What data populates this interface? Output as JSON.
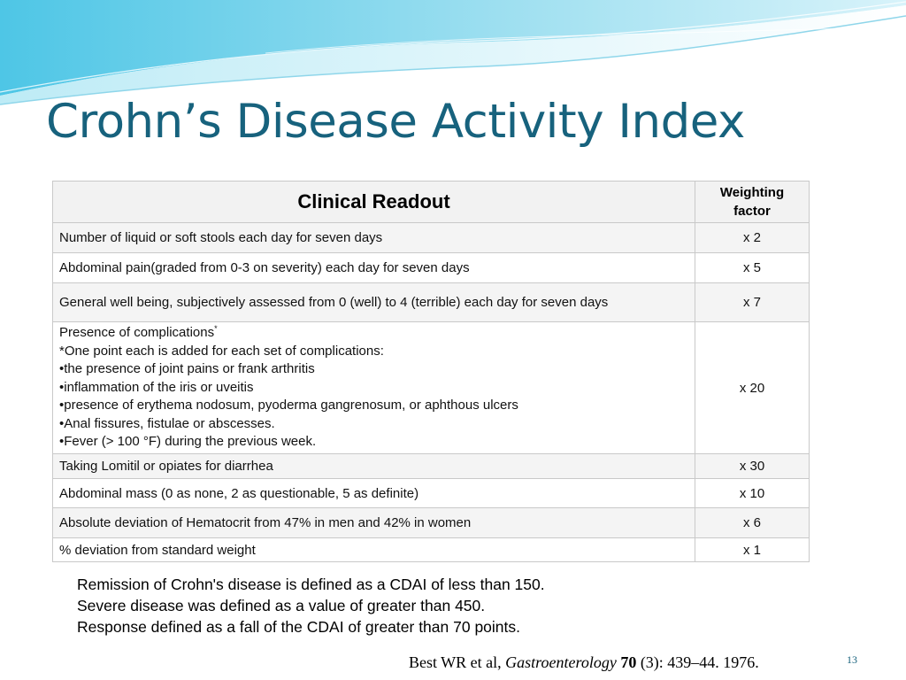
{
  "slide": {
    "title": "Crohn’s Disease Activity Index",
    "page_number": "13",
    "accent_color": "#17627d"
  },
  "table": {
    "headers": {
      "readout": "Clinical Readout",
      "weight_line1": "Weighting",
      "weight_line2": "factor"
    },
    "rows": [
      {
        "readout": "Number of liquid or soft stools each day for seven days",
        "weight": "x 2"
      },
      {
        "readout": "Abdominal pain(graded from 0-3 on severity) each day for seven days",
        "weight": "x 5"
      },
      {
        "readout": "General well being, subjectively assessed from 0 (well) to 4 (terrible) each day for seven days",
        "weight": "x 7"
      },
      {
        "readout": "Presence of complications",
        "marker": "*",
        "lines": [
          "*One point each is added for each set of complications:",
          "•the presence of joint pains or frank arthritis",
          "•inflammation of the iris or uveitis",
          "•presence of erythema nodosum, pyoderma gangrenosum, or aphthous ulcers",
          "•Anal fissures, fistulae or abscesses.",
          "•Fever (> 100 °F) during the previous week."
        ],
        "weight": "x 20"
      },
      {
        "readout": "Taking Lomitil or opiates for diarrhea",
        "weight": "x 30"
      },
      {
        "readout": "Abdominal mass (0 as none, 2 as questionable, 5 as definite)",
        "weight": "x 10"
      },
      {
        "readout": "Absolute deviation of Hematocrit from 47% in men and 42% in women",
        "weight": "x 6"
      },
      {
        "readout": "% deviation from standard weight",
        "weight": "x 1"
      }
    ]
  },
  "notes": [
    "Remission of Crohn's disease is defined as a CDAI of less than 150.",
    "Severe disease was defined as a value of greater than 450.",
    "Response defined as a fall of the CDAI of greater than 70 points."
  ],
  "citation": {
    "authors": "Best WR et al,",
    "journal": "Gastroenterology",
    "volume": "70",
    "details": "(3): 439–44. 1976."
  }
}
